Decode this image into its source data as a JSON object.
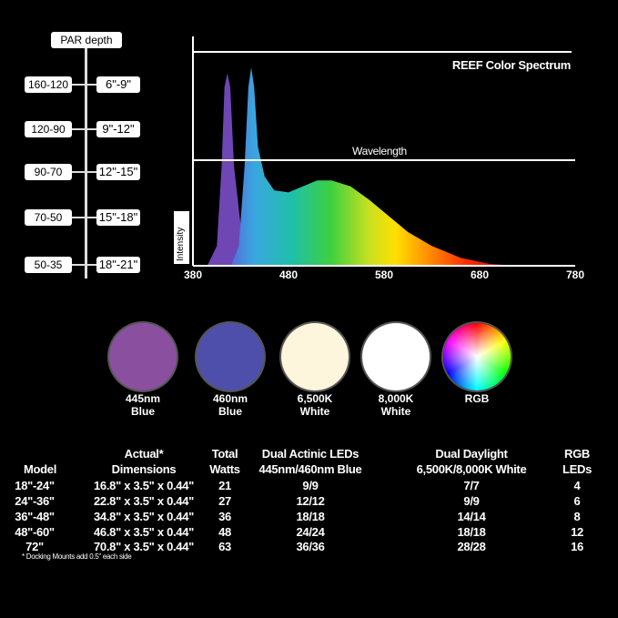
{
  "par_depth": {
    "header": "PAR depth",
    "rows": [
      {
        "par": "160-120",
        "depth": "6\"-9\""
      },
      {
        "par": "120-90",
        "depth": "9\"-12\""
      },
      {
        "par": "90-70",
        "depth": "12\"-15\""
      },
      {
        "par": "70-50",
        "depth": "15\"-18\""
      },
      {
        "par": "50-35",
        "depth": "18\"-21\""
      }
    ]
  },
  "chart_data": {
    "type": "area",
    "title": "REEF Color Spectrum",
    "xlabel": "Wavelength",
    "ylabel": "Intensity",
    "xlim": [
      380,
      780
    ],
    "xticks": [
      "380",
      "480",
      "580",
      "680",
      "780"
    ],
    "grid": false,
    "series": [
      {
        "color": "#7a4fc8",
        "points": [
          [
            395,
            0
          ],
          [
            405,
            0.1
          ],
          [
            410,
            0.5
          ],
          [
            413,
            0.9
          ],
          [
            416,
            0.97
          ],
          [
            419,
            0.9
          ],
          [
            423,
            0.5
          ],
          [
            430,
            0.2
          ],
          [
            440,
            0.1
          ],
          [
            460,
            0.03
          ],
          [
            470,
            0
          ]
        ]
      },
      {
        "color": "spectrum",
        "points": [
          [
            420,
            0
          ],
          [
            428,
            0.1
          ],
          [
            434,
            0.5
          ],
          [
            438,
            0.9
          ],
          [
            441,
            1.0
          ],
          [
            444,
            0.9
          ],
          [
            448,
            0.6
          ],
          [
            455,
            0.45
          ],
          [
            465,
            0.38
          ],
          [
            480,
            0.37
          ],
          [
            495,
            0.4
          ],
          [
            510,
            0.43
          ],
          [
            525,
            0.43
          ],
          [
            545,
            0.4
          ],
          [
            565,
            0.33
          ],
          [
            585,
            0.25
          ],
          [
            605,
            0.17
          ],
          [
            630,
            0.1
          ],
          [
            660,
            0.04
          ],
          [
            690,
            0.01
          ],
          [
            720,
            0
          ]
        ]
      }
    ]
  },
  "colors": [
    {
      "label1": "445nm",
      "label2": "Blue",
      "color": "#8b4f9f"
    },
    {
      "label1": "460nm",
      "label2": "Blue",
      "color": "#4e4faa"
    },
    {
      "label1": "6,500K",
      "label2": "White",
      "color": "#fdf5dc"
    },
    {
      "label1": "8,000K",
      "label2": "White",
      "color": "#ffffff"
    },
    {
      "label1": "RGB",
      "label2": "",
      "color": "rgb-wheel"
    }
  ],
  "table": {
    "headers": [
      [
        "",
        "Model"
      ],
      [
        "Actual*",
        "Dimensions"
      ],
      [
        "Total",
        "Watts"
      ],
      [
        "Dual Actinic LEDs",
        "445nm/460nm Blue"
      ],
      [
        "Dual Daylight",
        "6,500K/8,000K White"
      ],
      [
        "RGB",
        "LEDs"
      ]
    ],
    "rows": [
      [
        "18\"-24\"",
        "16.8\" x 3.5\" x 0.44\"",
        "21",
        "9/9",
        "7/7",
        "4"
      ],
      [
        "24\"-36\"",
        "22.8\" x 3.5\" x 0.44\"",
        "27",
        "12/12",
        "9/9",
        "6"
      ],
      [
        "36\"-48\"",
        "34.8\" x 3.5\" x 0.44\"",
        "36",
        "18/18",
        "14/14",
        "8"
      ],
      [
        "48\"-60\"",
        "46.8\" x 3.5\" x 0.44\"",
        "48",
        "24/24",
        "18/18",
        "12"
      ],
      [
        "72\"",
        "70.8\" x 3.5\" x 0.44\"",
        "63",
        "36/36",
        "28/28",
        "16"
      ]
    ],
    "footnote": "* Docking Mounts add 0.5\" each side"
  }
}
